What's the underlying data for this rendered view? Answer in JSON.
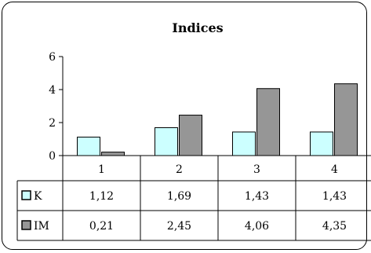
{
  "chart_data": {
    "type": "bar",
    "title": "Indices",
    "categories": [
      "1",
      "2",
      "3",
      "4"
    ],
    "series": [
      {
        "name": "K",
        "values": [
          1.12,
          1.69,
          1.43,
          1.43
        ],
        "labels": [
          "1,12",
          "1,69",
          "1,43",
          "1,43"
        ],
        "color": "#ccffff"
      },
      {
        "name": "IM",
        "values": [
          0.21,
          2.45,
          4.06,
          4.35
        ],
        "labels": [
          "0,21",
          "2,45",
          "4,06",
          "4,35"
        ],
        "color": "#969696"
      }
    ],
    "ylim": [
      0,
      6
    ],
    "yticks": [
      "0",
      "2",
      "4",
      "6"
    ],
    "xlabel": "",
    "ylabel": "",
    "grid": false,
    "legend": "data-table"
  }
}
